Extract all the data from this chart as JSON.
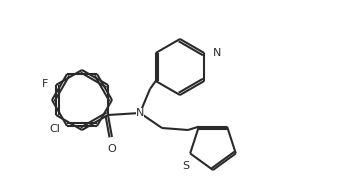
{
  "bg_color": "#ffffff",
  "line_color": "#2a2a2a",
  "bond_width": 1.5,
  "figsize": [
    3.51,
    1.95
  ],
  "dpi": 100,
  "xlim": [
    0.0,
    3.51
  ],
  "ylim": [
    0.0,
    1.95
  ]
}
